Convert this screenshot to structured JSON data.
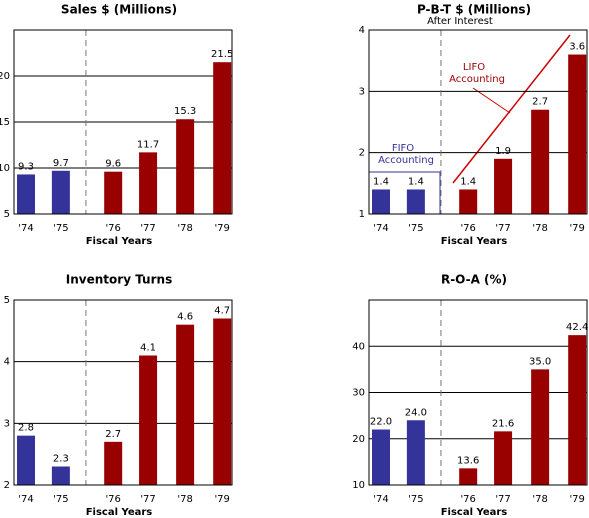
{
  "chart_data": [
    {
      "type": "bar",
      "title": "Sales $ (Millions)",
      "categories": [
        "'74",
        "'75",
        "'76",
        "'77",
        "'78",
        "'79"
      ],
      "values": [
        9.3,
        9.7,
        9.6,
        11.7,
        15.3,
        21.5
      ],
      "colors": [
        "#333399",
        "#333399",
        "#990000",
        "#990000",
        "#990000",
        "#990000"
      ],
      "xlabel": "Fiscal Years",
      "ylim": [
        5,
        25
      ],
      "yticks": [
        5,
        10,
        15,
        20
      ],
      "grid": true
    },
    {
      "type": "bar",
      "title": "P-B-T $ (Millions)",
      "subtitle": "After Interest",
      "categories": [
        "'74",
        "'75",
        "'76",
        "'77",
        "'78",
        "'79"
      ],
      "values": [
        1.4,
        1.4,
        1.4,
        1.9,
        2.7,
        3.6
      ],
      "colors": [
        "#333399",
        "#333399",
        "#990000",
        "#990000",
        "#990000",
        "#990000"
      ],
      "xlabel": "Fiscal Years",
      "ylim": [
        1,
        4
      ],
      "yticks": [
        1,
        2,
        3,
        4
      ],
      "grid": true,
      "annotations": [
        {
          "lines": [
            "FIFO",
            "Accounting"
          ],
          "color": "#333399"
        },
        {
          "lines": [
            "LIFO",
            "Accounting"
          ],
          "color": "#990000"
        }
      ]
    },
    {
      "type": "bar",
      "title": "Inventory Turns",
      "categories": [
        "'74",
        "'75",
        "'76",
        "'77",
        "'78",
        "'79"
      ],
      "values": [
        2.8,
        2.3,
        2.7,
        4.1,
        4.6,
        4.7
      ],
      "colors": [
        "#333399",
        "#333399",
        "#990000",
        "#990000",
        "#990000",
        "#990000"
      ],
      "xlabel": "Fiscal Years",
      "ylim": [
        2,
        5
      ],
      "yticks": [
        2,
        3,
        4,
        5
      ],
      "grid": true
    },
    {
      "type": "bar",
      "title": "R-O-A (%)",
      "categories": [
        "'74",
        "'75",
        "'76",
        "'77",
        "'78",
        "'79"
      ],
      "values": [
        22.0,
        24.0,
        13.6,
        21.6,
        35.0,
        42.4
      ],
      "value_labels": [
        "22.0",
        "24.0",
        "13.6",
        "21.6",
        "35.0",
        "42.4"
      ],
      "colors": [
        "#333399",
        "#333399",
        "#990000",
        "#990000",
        "#990000",
        "#990000"
      ],
      "xlabel": "Fiscal Years",
      "ylim": [
        10,
        50
      ],
      "yticks": [
        10,
        20,
        30,
        40
      ],
      "grid": true
    }
  ]
}
